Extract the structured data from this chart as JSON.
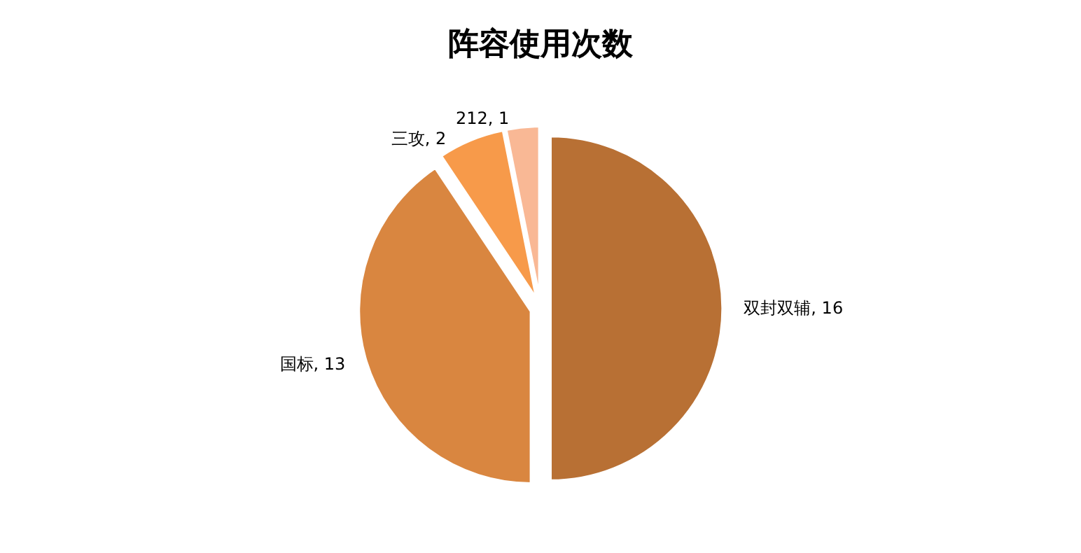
{
  "chart_data": {
    "type": "pie",
    "title": "阵容使用次数",
    "categories": [
      "双封双辅",
      "国标",
      "三攻",
      "212"
    ],
    "values": [
      16,
      13,
      2,
      1
    ],
    "value_labels": [
      ", 16",
      ", 13",
      ", 2",
      ", 1"
    ],
    "colors": [
      "#b87034",
      "#d98640",
      "#f79a4a",
      "#f9b895"
    ],
    "legend": false
  }
}
